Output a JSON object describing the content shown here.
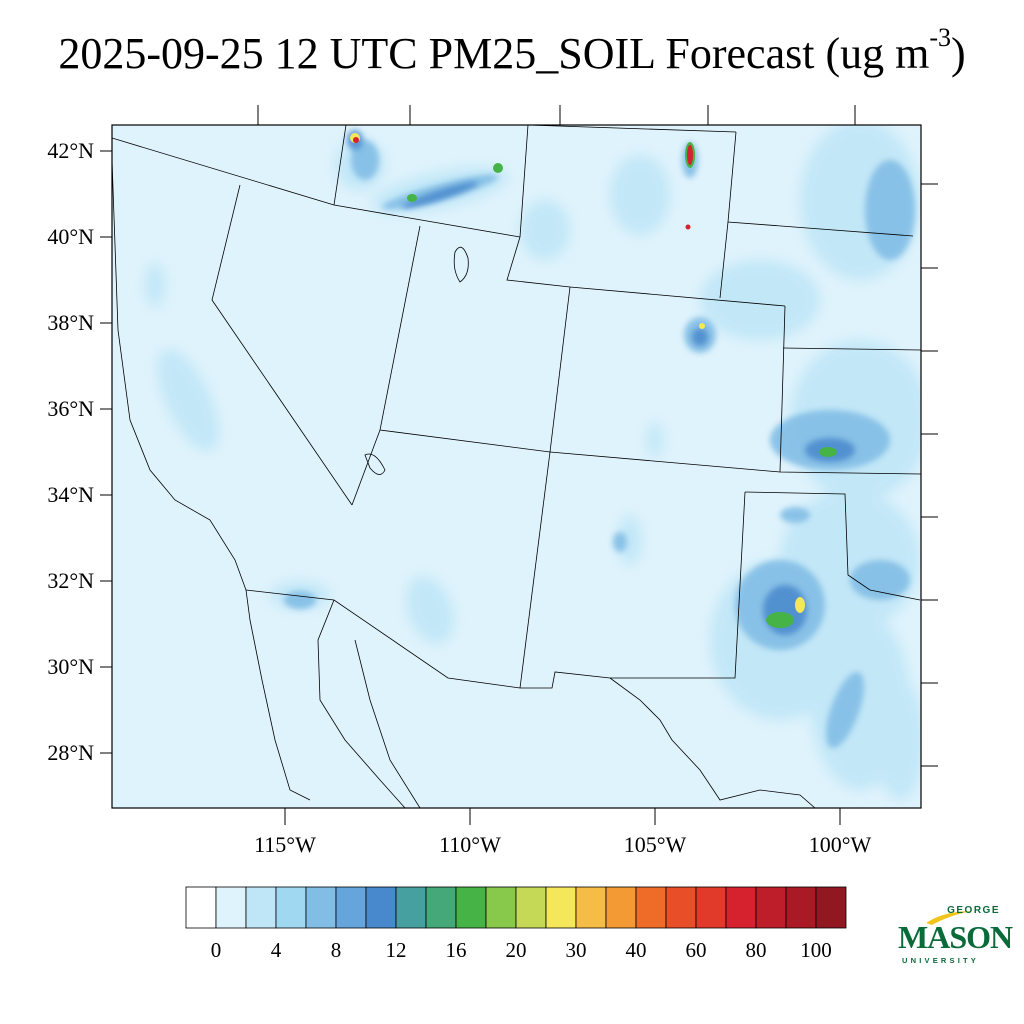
{
  "title": {
    "main": "2025-09-25 12 UTC PM25_SOIL Forecast (ug m",
    "superscript": "-3",
    "close": ")"
  },
  "lat_labels": [
    "42°N",
    "40°N",
    "38°N",
    "36°N",
    "34°N",
    "32°N",
    "30°N",
    "28°N"
  ],
  "lon_labels": [
    "115°W",
    "110°W",
    "105°W",
    "100°W"
  ],
  "colorbar": {
    "labels": [
      "0",
      "4",
      "8",
      "12",
      "16",
      "20",
      "30",
      "40",
      "60",
      "80",
      "100"
    ],
    "colors": [
      "#ffffff",
      "#dff3fc",
      "#bfe6f7",
      "#a0d8f2",
      "#82bde5",
      "#65a5db",
      "#4888cc",
      "#47a0a0",
      "#44a878",
      "#46b346",
      "#88c84a",
      "#c5d957",
      "#f4e75a",
      "#f6bd46",
      "#f49a34",
      "#ef6b28",
      "#e84e27",
      "#e13a2a",
      "#d5222e",
      "#be1d2a",
      "#a91a26",
      "#911821"
    ]
  },
  "map": {
    "background_color": "#dff3fc",
    "concentration_color_light": "#bfe6f7",
    "concentration_color_mid": "#82bde5",
    "concentration_color_high": "#4888cc",
    "hotspot_green": "#46b346",
    "hotspot_yellow": "#f4e75a",
    "hotspot_red": "#d5222e"
  },
  "logo": {
    "top": "GEORGE",
    "main": "MASON",
    "bottom": "UNIVERSITY",
    "color": "#0a6a3a",
    "swoosh_color": "#f0c419"
  }
}
